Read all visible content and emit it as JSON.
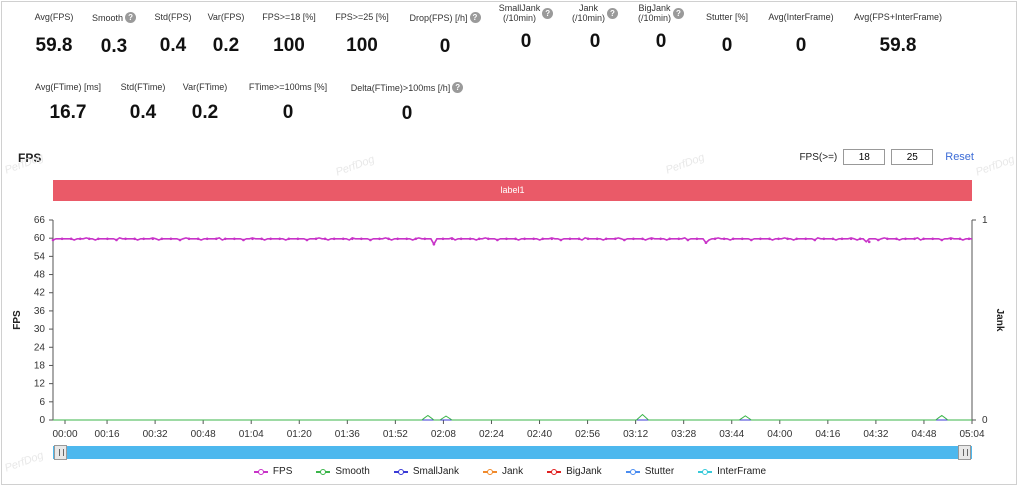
{
  "metrics_row1": [
    {
      "label": "Avg(FPS)",
      "value": "59.8",
      "help": false
    },
    {
      "label": "Smooth",
      "value": "0.3",
      "help": true
    },
    {
      "label": "Std(FPS)",
      "value": "0.4",
      "help": false
    },
    {
      "label": "Var(FPS)",
      "value": "0.2",
      "help": false
    },
    {
      "label": "FPS>=18 [%]",
      "value": "100",
      "help": false
    },
    {
      "label": "FPS>=25 [%]",
      "value": "100",
      "help": false
    },
    {
      "label": "Drop(FPS) [/h]",
      "value": "0",
      "help": true
    },
    {
      "label": "SmallJank",
      "label2": "(/10min)",
      "value": "0",
      "help": true
    },
    {
      "label": "Jank",
      "label2": "(/10min)",
      "value": "0",
      "help": true
    },
    {
      "label": "BigJank",
      "label2": "(/10min)",
      "value": "0",
      "help": true
    },
    {
      "label": "Stutter [%]",
      "value": "0",
      "help": false
    },
    {
      "label": "Avg(InterFrame)",
      "value": "0",
      "help": false
    },
    {
      "label": "Avg(FPS+InterFrame)",
      "value": "59.8",
      "help": false
    }
  ],
  "metrics_row2": [
    {
      "label": "Avg(FTime) [ms]",
      "value": "16.7",
      "help": false
    },
    {
      "label": "Std(FTime)",
      "value": "0.4",
      "help": false
    },
    {
      "label": "Var(FTime)",
      "value": "0.2",
      "help": false
    },
    {
      "label": "FTime>=100ms [%]",
      "value": "0",
      "help": false
    },
    {
      "label": "Delta(FTime)>100ms [/h]",
      "value": "0",
      "help": true
    }
  ],
  "help_glyph": "?",
  "section_title": "FPS",
  "fps_threshold": {
    "label": "FPS(>=)",
    "low": "18",
    "high": "25",
    "reset_label": "Reset"
  },
  "label_bar_text": "label1",
  "watermark": "PerfDog",
  "chart_data": {
    "type": "line",
    "xlabel": "",
    "ylabel": "FPS",
    "y2label": "Jank",
    "ylim": [
      0,
      66
    ],
    "y2lim": [
      0,
      1
    ],
    "yticks": [
      "0",
      "6",
      "12",
      "18",
      "24",
      "30",
      "36",
      "42",
      "48",
      "54",
      "60",
      "66"
    ],
    "y2ticks": [
      "0",
      "1"
    ],
    "xticks": [
      "00:00",
      "00:16",
      "00:32",
      "00:48",
      "01:04",
      "01:20",
      "01:36",
      "01:52",
      "02:08",
      "02:24",
      "02:40",
      "02:56",
      "03:12",
      "03:28",
      "03:44",
      "04:00",
      "04:16",
      "04:32",
      "04:48",
      "05:04"
    ],
    "x_range_seconds": [
      0,
      304
    ],
    "series": [
      {
        "name": "FPS",
        "color": "#c833c8",
        "baseline": 59.8,
        "dips": [
          [
            126,
            58.0
          ],
          [
            216,
            58.5
          ],
          [
            269,
            58.8
          ]
        ]
      },
      {
        "name": "Smooth",
        "color": "#3bb54a",
        "baseline": 0,
        "bumps": [
          [
            124,
            1.5
          ],
          [
            130,
            1.3
          ],
          [
            195,
            1.8
          ],
          [
            229,
            1.4
          ],
          [
            294,
            1.5
          ]
        ]
      },
      {
        "name": "SmallJank",
        "color": "#3a3ad6",
        "baseline": 0
      },
      {
        "name": "Jank",
        "color": "#f08a2c",
        "baseline": 0
      },
      {
        "name": "BigJank",
        "color": "#e02020",
        "baseline": 0
      },
      {
        "name": "Stutter",
        "color": "#4a8cf0",
        "baseline": 0
      },
      {
        "name": "InterFrame",
        "color": "#36c9d9",
        "baseline": 0
      }
    ]
  }
}
